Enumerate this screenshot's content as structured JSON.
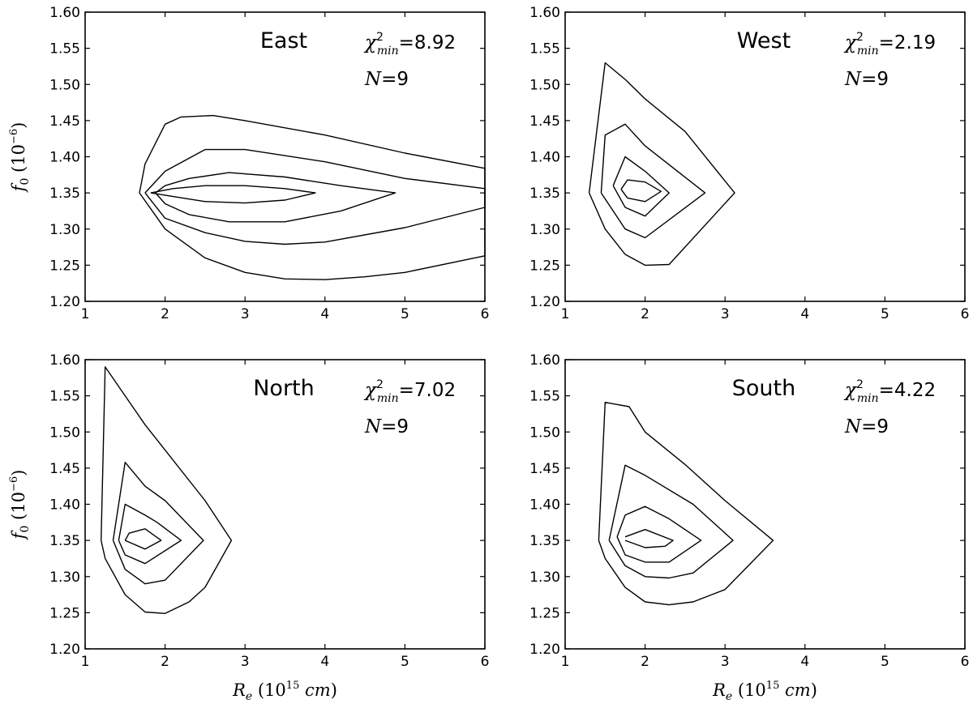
{
  "chart_data": [
    {
      "type": "line",
      "title": "East",
      "annotations": {
        "chi2_label": "χ²min=8.92",
        "chi2_min": 8.92,
        "n_label": "N=9",
        "N": 9
      },
      "xlabel": "",
      "ylabel": "f0 (10^-6)",
      "xlim": [
        1,
        6
      ],
      "ylim": [
        1.2,
        1.6
      ],
      "x_ticks": [
        "1",
        "2",
        "3",
        "4",
        "5",
        "6"
      ],
      "y_ticks": [
        "1.20",
        "1.25",
        "1.30",
        "1.35",
        "1.40",
        "1.45",
        "1.50",
        "1.55",
        "1.60"
      ],
      "grid": false,
      "contours": [
        {
          "name": "contour-1",
          "x": [
            1.82,
            2.1,
            2.5,
            3.0,
            3.5,
            3.88,
            3.5,
            3.0,
            2.5,
            2.1,
            1.82
          ],
          "y": [
            1.35,
            1.345,
            1.338,
            1.336,
            1.34,
            1.35,
            1.356,
            1.36,
            1.36,
            1.356,
            1.35
          ]
        },
        {
          "name": "contour-2",
          "x": [
            1.88,
            2.0,
            2.3,
            2.8,
            3.5,
            4.2,
            4.88,
            4.2,
            3.5,
            2.8,
            2.3,
            2.0,
            1.88
          ],
          "y": [
            1.35,
            1.335,
            1.32,
            1.31,
            1.31,
            1.325,
            1.35,
            1.36,
            1.372,
            1.378,
            1.37,
            1.36,
            1.35
          ]
        },
        {
          "name": "contour-3",
          "x": [
            1.75,
            2.0,
            2.5,
            3.0,
            3.5,
            4.0,
            5.0,
            6.0,
            6.0,
            5.0,
            4.0,
            3.0,
            2.5,
            2.0,
            1.75
          ],
          "y": [
            1.35,
            1.315,
            1.295,
            1.283,
            1.279,
            1.282,
            1.302,
            1.33,
            1.356,
            1.37,
            1.393,
            1.41,
            1.41,
            1.38,
            1.35
          ]
        },
        {
          "name": "contour-4",
          "x": [
            1.68,
            2.0,
            2.5,
            3.0,
            3.5,
            4.0,
            4.5,
            5.0,
            6.0,
            6.0,
            5.0,
            4.0,
            3.0,
            2.6,
            2.2,
            2.0,
            1.75,
            1.68
          ],
          "y": [
            1.35,
            1.3,
            1.26,
            1.24,
            1.231,
            1.23,
            1.234,
            1.24,
            1.263,
            1.384,
            1.405,
            1.43,
            1.45,
            1.457,
            1.455,
            1.445,
            1.39,
            1.35
          ]
        }
      ]
    },
    {
      "type": "line",
      "title": "West",
      "annotations": {
        "chi2_label": "χ²min=2.19",
        "chi2_min": 2.19,
        "n_label": "N=9",
        "N": 9
      },
      "xlabel": "",
      "ylabel": "",
      "xlim": [
        1,
        6
      ],
      "ylim": [
        1.2,
        1.6
      ],
      "x_ticks": [
        "1",
        "2",
        "3",
        "4",
        "5",
        "6"
      ],
      "y_ticks": [
        "1.20",
        "1.25",
        "1.30",
        "1.35",
        "1.40",
        "1.45",
        "1.50",
        "1.55",
        "1.60"
      ],
      "grid": false,
      "contours": [
        {
          "name": "contour-1",
          "x": [
            1.7,
            1.78,
            2.0,
            2.2,
            2.0,
            1.78,
            1.7
          ],
          "y": [
            1.355,
            1.343,
            1.338,
            1.352,
            1.365,
            1.368,
            1.355
          ]
        },
        {
          "name": "contour-2",
          "x": [
            1.6,
            1.75,
            2.0,
            2.3,
            2.0,
            1.75,
            1.6
          ],
          "y": [
            1.36,
            1.33,
            1.318,
            1.35,
            1.38,
            1.4,
            1.36
          ]
        },
        {
          "name": "contour-3",
          "x": [
            1.45,
            1.75,
            2.0,
            2.75,
            2.0,
            1.75,
            1.5,
            1.45
          ],
          "y": [
            1.35,
            1.3,
            1.288,
            1.35,
            1.415,
            1.445,
            1.43,
            1.35
          ]
        },
        {
          "name": "contour-4",
          "x": [
            1.3,
            1.5,
            1.75,
            2.0,
            2.3,
            3.12,
            2.5,
            2.0,
            1.75,
            1.5,
            1.3
          ],
          "y": [
            1.35,
            1.3,
            1.265,
            1.25,
            1.251,
            1.35,
            1.435,
            1.48,
            1.507,
            1.53,
            1.35
          ]
        }
      ]
    },
    {
      "type": "line",
      "title": "North",
      "annotations": {
        "chi2_label": "χ²min=7.02",
        "chi2_min": 7.02,
        "n_label": "N=9",
        "N": 9
      },
      "xlabel": "Re (10^15 cm)",
      "ylabel": "f0 (10^-6)",
      "xlim": [
        1,
        6
      ],
      "ylim": [
        1.2,
        1.6
      ],
      "x_ticks": [
        "1",
        "2",
        "3",
        "4",
        "5",
        "6"
      ],
      "y_ticks": [
        "1.20",
        "1.25",
        "1.30",
        "1.35",
        "1.40",
        "1.45",
        "1.50",
        "1.55",
        "1.60"
      ],
      "grid": false,
      "contours": [
        {
          "name": "contour-1",
          "x": [
            1.5,
            1.75,
            1.95,
            1.75,
            1.55,
            1.5
          ],
          "y": [
            1.35,
            1.338,
            1.35,
            1.366,
            1.36,
            1.35
          ]
        },
        {
          "name": "contour-2",
          "x": [
            1.42,
            1.5,
            1.75,
            2.2,
            1.9,
            1.75,
            1.5,
            1.42
          ],
          "y": [
            1.35,
            1.33,
            1.318,
            1.35,
            1.375,
            1.385,
            1.4,
            1.35
          ]
        },
        {
          "name": "contour-3",
          "x": [
            1.35,
            1.5,
            1.75,
            2.0,
            2.48,
            2.0,
            1.75,
            1.5,
            1.35
          ],
          "y": [
            1.35,
            1.31,
            1.29,
            1.295,
            1.35,
            1.405,
            1.425,
            1.458,
            1.35
          ]
        },
        {
          "name": "contour-4",
          "x": [
            1.2,
            1.25,
            1.5,
            1.75,
            2.0,
            2.3,
            2.5,
            2.83,
            2.5,
            2.0,
            1.75,
            1.5,
            1.25,
            1.2
          ],
          "y": [
            1.35,
            1.325,
            1.275,
            1.251,
            1.249,
            1.265,
            1.285,
            1.35,
            1.405,
            1.475,
            1.51,
            1.55,
            1.59,
            1.35
          ]
        }
      ]
    },
    {
      "type": "line",
      "title": "South",
      "annotations": {
        "chi2_label": "χ²min=4.22",
        "chi2_min": 4.22,
        "n_label": "N=9",
        "N": 9
      },
      "xlabel": "Re (10^15 cm)",
      "ylabel": "",
      "xlim": [
        1,
        6
      ],
      "ylim": [
        1.2,
        1.6
      ],
      "x_ticks": [
        "1",
        "2",
        "3",
        "4",
        "5",
        "6"
      ],
      "y_ticks": [
        "1.20",
        "1.25",
        "1.30",
        "1.35",
        "1.40",
        "1.45",
        "1.50",
        "1.55",
        "1.60"
      ],
      "grid": false,
      "contours": [
        {
          "name": "contour-1",
          "x": [
            1.75,
            2.0,
            2.25,
            2.35,
            2.0,
            1.75
          ],
          "y": [
            1.35,
            1.34,
            1.342,
            1.35,
            1.365,
            1.355
          ]
        },
        {
          "name": "contour-2",
          "x": [
            1.65,
            1.75,
            2.0,
            2.3,
            2.7,
            2.3,
            2.0,
            1.75,
            1.65
          ],
          "y": [
            1.355,
            1.33,
            1.32,
            1.32,
            1.35,
            1.38,
            1.397,
            1.385,
            1.355
          ]
        },
        {
          "name": "contour-3",
          "x": [
            1.55,
            1.75,
            2.0,
            2.3,
            2.6,
            3.1,
            2.6,
            2.0,
            1.75,
            1.55
          ],
          "y": [
            1.35,
            1.315,
            1.3,
            1.298,
            1.305,
            1.35,
            1.4,
            1.44,
            1.454,
            1.35
          ]
        },
        {
          "name": "contour-4",
          "x": [
            1.42,
            1.5,
            1.75,
            2.0,
            2.3,
            2.6,
            3.0,
            3.6,
            3.0,
            2.5,
            2.0,
            1.8,
            1.5,
            1.42
          ],
          "y": [
            1.35,
            1.325,
            1.285,
            1.265,
            1.261,
            1.265,
            1.282,
            1.35,
            1.405,
            1.455,
            1.5,
            1.535,
            1.541,
            1.35
          ]
        }
      ]
    }
  ]
}
